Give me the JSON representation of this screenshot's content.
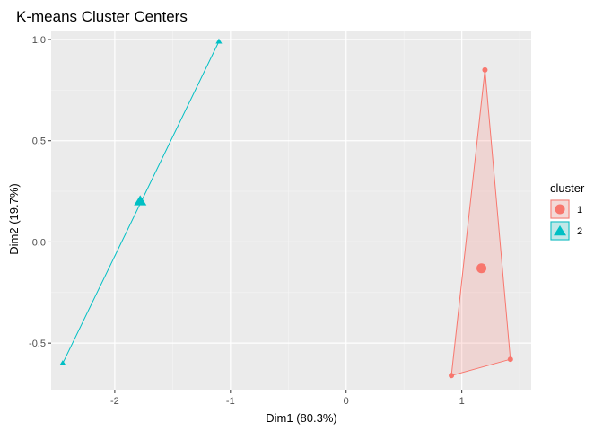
{
  "chart_data": {
    "type": "scatter",
    "title": "K-means Cluster Centers",
    "xlabel": "Dim1 (80.3%)",
    "ylabel": "Dim2 (19.7%)",
    "xlim": [
      -2.55,
      1.6
    ],
    "ylim": [
      -0.73,
      1.04
    ],
    "x_ticks": [
      -2,
      -1,
      0,
      1
    ],
    "x_tick_labels": [
      "-2",
      "-1",
      "0",
      "1"
    ],
    "y_ticks": [
      -0.5,
      0.0,
      0.5,
      1.0
    ],
    "y_tick_labels": [
      "-0.5",
      "0.0",
      "0.5",
      "1.0"
    ],
    "grid": true,
    "legend": {
      "title": "cluster",
      "position": "right"
    },
    "series": [
      {
        "name": "1",
        "color": "#F8766D",
        "shape": "circle",
        "points": [
          [
            1.2,
            0.85
          ],
          [
            1.42,
            -0.58
          ],
          [
            0.91,
            -0.66
          ]
        ],
        "hull": [
          [
            1.2,
            0.85
          ],
          [
            1.42,
            -0.58
          ],
          [
            0.91,
            -0.66
          ]
        ],
        "center": [
          1.17,
          -0.13
        ]
      },
      {
        "name": "2",
        "color": "#00BFC4",
        "shape": "triangle",
        "points": [
          [
            -1.1,
            0.99
          ],
          [
            -2.45,
            -0.6
          ]
        ],
        "hull": [
          [
            -1.1,
            0.99
          ],
          [
            -2.45,
            -0.6
          ]
        ],
        "center": [
          -1.78,
          0.2
        ]
      }
    ]
  }
}
